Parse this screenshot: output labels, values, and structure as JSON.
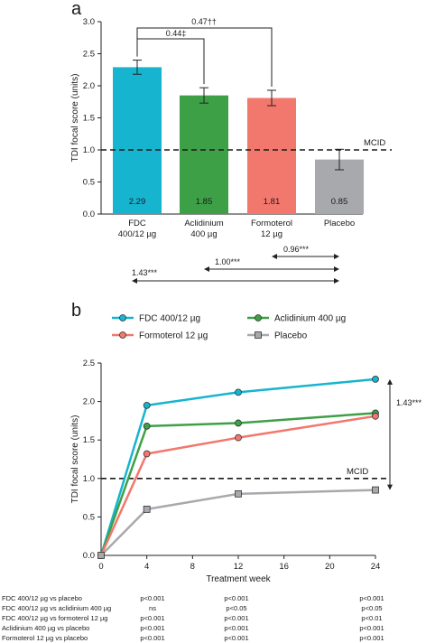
{
  "panels": {
    "a": "a",
    "b": "b"
  },
  "chart_data": [
    {
      "type": "bar",
      "panel": "a",
      "ylabel": "TDI focal score (units)",
      "ylim": [
        0,
        3.0
      ],
      "yticks": [
        "0.0",
        "0.5",
        "1.0",
        "1.5",
        "2.0",
        "2.5",
        "3.0"
      ],
      "categories": [
        {
          "line1": "FDC",
          "line2": "400/12 µg"
        },
        {
          "line1": "Aclidinium",
          "line2": "400 µg"
        },
        {
          "line1": "Formoterol",
          "line2": "12 µg"
        },
        {
          "line1": "Placebo",
          "line2": ""
        }
      ],
      "values": [
        2.29,
        1.85,
        1.81,
        0.85
      ],
      "value_labels": [
        "2.29",
        "1.85",
        "1.81",
        "0.85"
      ],
      "errors": [
        0.11,
        0.12,
        0.12,
        0.16
      ],
      "colors": [
        "#17b4cf",
        "#3ea046",
        "#f2776d",
        "#a7a9ac"
      ],
      "reference_line": {
        "value": 1.0,
        "label": "MCID"
      },
      "top_comparisons": [
        {
          "from": 0,
          "to": 1,
          "label": "0.44‡"
        },
        {
          "from": 0,
          "to": 2,
          "label": "0.47††"
        }
      ],
      "bottom_comparisons": [
        {
          "label": "0.96***"
        },
        {
          "label": "1.00***"
        },
        {
          "label": "1.43***"
        }
      ]
    },
    {
      "type": "line",
      "panel": "b",
      "xlabel": "Treatment week",
      "ylabel": "TDI focal score (units)",
      "xlim": [
        0,
        24
      ],
      "ylim": [
        0,
        2.5
      ],
      "xticks": [
        "0",
        "4",
        "8",
        "12",
        "16",
        "20",
        "24"
      ],
      "yticks": [
        "0.0",
        "0.5",
        "1.0",
        "1.5",
        "2.0",
        "2.5"
      ],
      "x": [
        0,
        4,
        12,
        24
      ],
      "series": [
        {
          "name": "FDC 400/12 µg",
          "values": [
            0,
            1.95,
            2.12,
            2.29
          ],
          "color": "#17b4cf",
          "marker": "circle"
        },
        {
          "name": "Aclidinium 400 µg",
          "values": [
            0,
            1.68,
            1.72,
            1.85
          ],
          "color": "#3ea046",
          "marker": "circle"
        },
        {
          "name": "Formoterol 12 µg",
          "values": [
            0,
            1.32,
            1.53,
            1.81
          ],
          "color": "#f2776d",
          "marker": "circle"
        },
        {
          "name": "Placebo",
          "values": [
            0,
            0.6,
            0.8,
            0.85
          ],
          "color": "#a7a9ac",
          "marker": "square"
        }
      ],
      "reference_line": {
        "value": 1.0,
        "label": "MCID"
      },
      "difference_annotation": "1.43***"
    }
  ],
  "pvalue_table": [
    {
      "label": "FDC 400/12 µg vs placebo",
      "week4": "p<0.001",
      "week12": "p<0.001",
      "week24": "p<0.001"
    },
    {
      "label": "FDC 400/12 µg vs aclidinium 400 µg",
      "week4": "ns",
      "week12": "p<0.05",
      "week24": "p<0.05"
    },
    {
      "label": "FDC 400/12 µg vs formoterol 12 µg",
      "week4": "p<0.001",
      "week12": "p<0.001",
      "week24": "p<0.01"
    },
    {
      "label": "Aclidinium 400 µg vs placebo",
      "week4": "p<0.001",
      "week12": "p<0.001",
      "week24": "p<0.001"
    },
    {
      "label": "Formoterol 12 µg vs placebo",
      "week4": "p<0.001",
      "week12": "p<0.001",
      "week24": "p<0.001"
    }
  ]
}
